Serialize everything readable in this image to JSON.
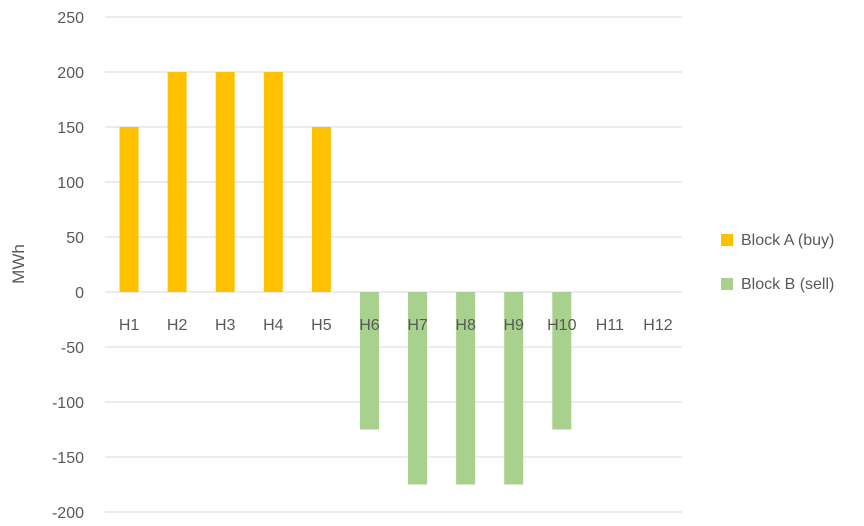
{
  "chart_data": {
    "type": "bar",
    "title": "",
    "xlabel": "",
    "ylabel": "MWh",
    "ylim": [
      -200,
      250
    ],
    "yticks": [
      250,
      200,
      150,
      100,
      50,
      0,
      -50,
      -100,
      -150,
      -200
    ],
    "categories": [
      "H1",
      "H2",
      "H3",
      "H4",
      "H5",
      "H6",
      "H7",
      "H8",
      "H9",
      "H10",
      "H11",
      "H12"
    ],
    "series": [
      {
        "name": "Block A (buy)",
        "color": "#ffc000",
        "values": [
          150,
          200,
          200,
          200,
          150,
          0,
          0,
          0,
          0,
          0,
          0,
          0
        ]
      },
      {
        "name": "Block B (sell)",
        "color": "#a9d18e",
        "values": [
          0,
          0,
          0,
          0,
          0,
          -125,
          -175,
          -175,
          -175,
          -125,
          0,
          0
        ]
      }
    ],
    "grid": true,
    "legend_position": "right"
  }
}
